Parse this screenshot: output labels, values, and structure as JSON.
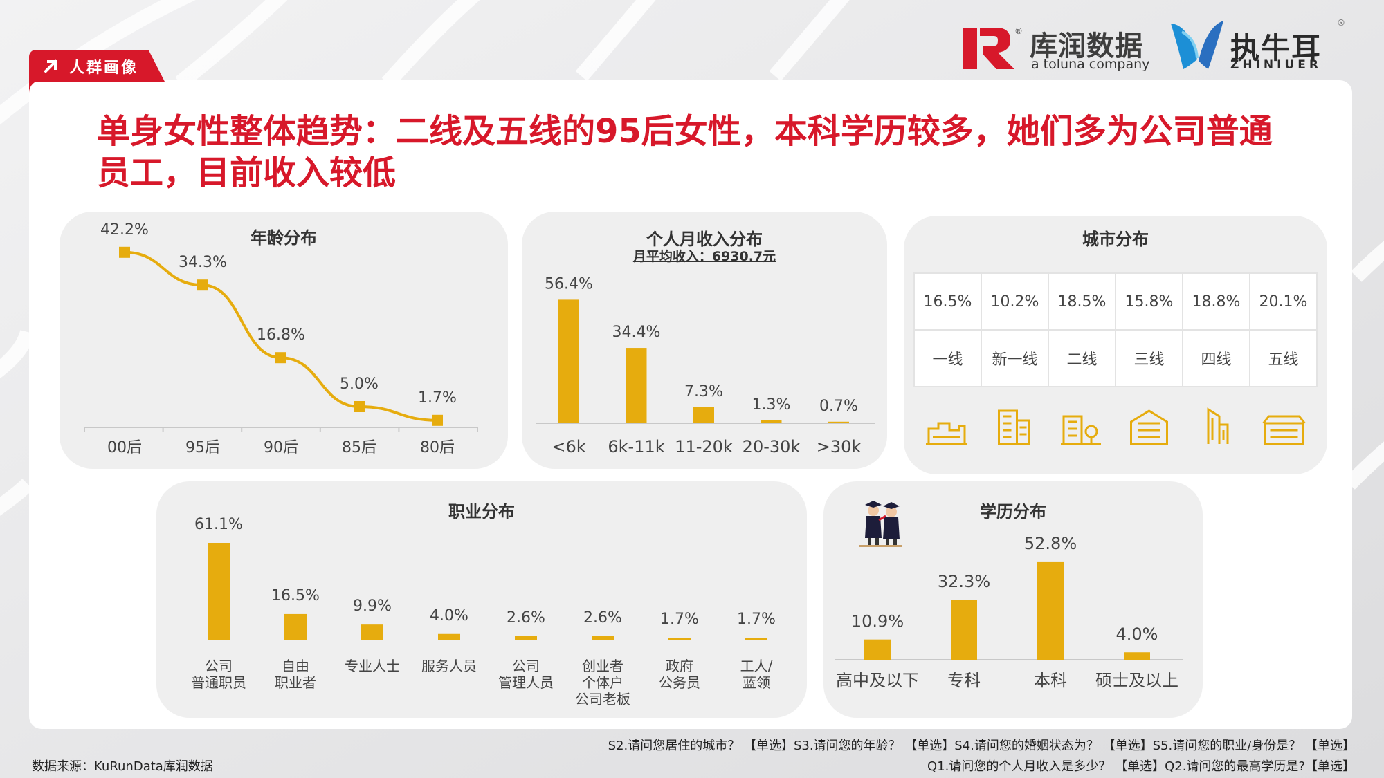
{
  "section_tag": "人群画像",
  "headline": "单身女性整体趋势：二线及五线的95后女性，本科学历较多，她们多为公司普通员工，目前收入较低",
  "logos": {
    "kurun_name": "库润数据",
    "kurun_sub": "a toluna company",
    "zhiniuer_name": "执牛耳",
    "zhiniuer_sub": "ZHINIUER",
    "registered_mark": "®"
  },
  "colors": {
    "accent": "#d7182a",
    "bar": "#e6ac0e",
    "text": "#444444"
  },
  "panels": {
    "age": {
      "title": "年龄分布"
    },
    "income": {
      "title": "个人月收入分布",
      "subtitle": "月平均收入：6930.7元"
    },
    "city": {
      "title": "城市分布",
      "icons": [
        "city-tier1-icon",
        "city-new-tier1-icon",
        "city-tier2-icon",
        "city-tier3-icon",
        "city-tier4-icon",
        "city-tier5-icon"
      ]
    },
    "occupation": {
      "title": "职业分布"
    },
    "education": {
      "title": "学历分布",
      "icon": "graduates-icon"
    }
  },
  "chart_data": [
    {
      "id": "age",
      "type": "line",
      "title": "年龄分布",
      "categories": [
        "00后",
        "95后",
        "90后",
        "85后",
        "80后"
      ],
      "values": [
        42.2,
        34.3,
        16.8,
        5.0,
        1.7
      ],
      "labels": [
        "42.2%",
        "34.3%",
        "16.8%",
        "5.0%",
        "1.7%"
      ],
      "unit": "%",
      "ylim": [
        0,
        45
      ],
      "grid": false,
      "legend": "none"
    },
    {
      "id": "income",
      "type": "bar",
      "title": "个人月收入分布",
      "subtitle": "月平均收入：6930.7元",
      "categories": [
        "<6k",
        "6k-11k",
        "11-20k",
        "20-30k",
        ">30k"
      ],
      "values": [
        56.4,
        34.4,
        7.3,
        1.3,
        0.7
      ],
      "labels": [
        "56.4%",
        "34.4%",
        "7.3%",
        "1.3%",
        "0.7%"
      ],
      "unit": "%",
      "ylim": [
        0,
        60
      ],
      "grid": false,
      "legend": "none"
    },
    {
      "id": "city",
      "type": "table",
      "title": "城市分布",
      "categories": [
        "一线",
        "新一线",
        "二线",
        "三线",
        "四线",
        "五线"
      ],
      "values": [
        16.5,
        10.2,
        18.5,
        15.8,
        18.8,
        20.1
      ],
      "labels": [
        "16.5%",
        "10.2%",
        "18.5%",
        "15.8%",
        "18.8%",
        "20.1%"
      ],
      "unit": "%"
    },
    {
      "id": "occupation",
      "type": "bar",
      "title": "职业分布",
      "categories": [
        [
          "公司",
          "普通职员"
        ],
        [
          "自由",
          "职业者"
        ],
        [
          "专业人士"
        ],
        [
          "服务人员"
        ],
        [
          "公司",
          "管理人员"
        ],
        [
          "创业者",
          "个体户",
          "公司老板"
        ],
        [
          "政府",
          "公务员"
        ],
        [
          "工人/",
          "蓝领"
        ]
      ],
      "values": [
        61.1,
        16.5,
        9.9,
        4.0,
        2.6,
        2.6,
        1.7,
        1.7
      ],
      "labels": [
        "61.1%",
        "16.5%",
        "9.9%",
        "4.0%",
        "2.6%",
        "2.6%",
        "1.7%",
        "1.7%"
      ],
      "unit": "%",
      "ylim": [
        0,
        65
      ],
      "grid": false,
      "legend": "none"
    },
    {
      "id": "education",
      "type": "bar",
      "title": "学历分布",
      "categories": [
        "高中及以下",
        "专科",
        "本科",
        "硕士及以上"
      ],
      "values": [
        10.9,
        32.3,
        52.8,
        4.0
      ],
      "labels": [
        "10.9%",
        "32.3%",
        "52.8%",
        "4.0%"
      ],
      "unit": "%",
      "ylim": [
        0,
        55
      ],
      "grid": false,
      "legend": "none"
    }
  ],
  "footer": {
    "source": "数据来源：KuRunData库润数据",
    "questions_line1": "S2.请问您居住的城市？ 【单选】S3.请问您的年龄？ 【单选】S4.请问您的婚姻状态为？ 【单选】S5.请问您的职业/身份是？ 【单选】",
    "questions_line2": "Q1.请问您的个人月收入是多少？ 【单选】Q2.请问您的最高学历是?【单选】"
  }
}
